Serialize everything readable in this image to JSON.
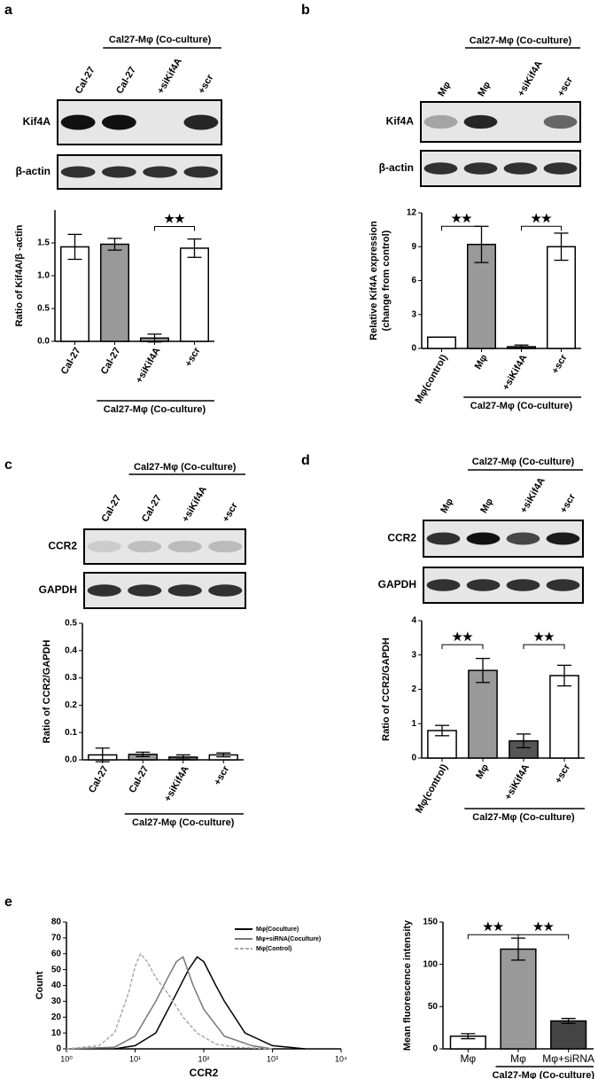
{
  "panel_labels": [
    "a",
    "b",
    "c",
    "d",
    "e"
  ],
  "blots": [
    {
      "group_label": "Cal27-Mφ (Co-culture)",
      "lanes": [
        "Cal-27",
        "Cal-27",
        "+siKif4A",
        "+scr"
      ],
      "rows": [
        "Kif4A",
        "β-actin"
      ]
    },
    {
      "group_label": "Cal27-Mφ (Co-culture)",
      "lanes": [
        "Mφ",
        "Mφ",
        "+siKif4A",
        "+scr"
      ],
      "rows": [
        "Kif4A",
        "β-actin"
      ]
    },
    {
      "group_label": "Cal27-Mφ (Co-culture)",
      "lanes": [
        "Cal-27",
        "Cal-27",
        "+siKif4A",
        "+scr"
      ],
      "rows": [
        "CCR2",
        "GAPDH"
      ]
    },
    {
      "group_label": "Cal27-Mφ (Co-culture)",
      "lanes": [
        "Mφ",
        "Mφ",
        "+siKif4A",
        "+scr"
      ],
      "rows": [
        "CCR2",
        "GAPDH"
      ]
    }
  ],
  "chart_data": [
    {
      "type": "bar",
      "categories": [
        "Cal-27",
        "Cal-27",
        "+siKif4A",
        "+scr"
      ],
      "values": [
        1.44,
        1.48,
        0.05,
        1.42
      ],
      "errors": [
        0.19,
        0.09,
        0.06,
        0.14
      ],
      "colors": [
        "#ffffff",
        "#999999",
        "#999999",
        "#ffffff"
      ],
      "ylim": [
        0,
        2
      ],
      "yticks": [
        {
          "value": 0,
          "label": "0.0"
        },
        0.5,
        {
          "value": 1,
          "label": "1.0"
        },
        1.5
      ],
      "ylabel": [
        "Ratio of Kif4A/β -actin"
      ],
      "group_label": "Cal27-Mφ (Co-culture)",
      "annotations": [
        "★★"
      ]
    },
    {
      "type": "bar",
      "categories": [
        "Mφ(control)",
        "Mφ",
        "+siKif4A",
        "+scr"
      ],
      "values": [
        1.0,
        9.2,
        0.15,
        9.0
      ],
      "errors": [
        0,
        1.6,
        0.15,
        1.2
      ],
      "colors": [
        "#ffffff",
        "#999999",
        "#666666",
        "#ffffff"
      ],
      "ylim": [
        0,
        12
      ],
      "yticks": [
        0,
        3,
        6,
        9,
        12
      ],
      "ylabel": [
        "Relative Kif4A expression",
        "(change from control)"
      ],
      "group_label": "Cal27-Mφ (Co-culture)",
      "annotations": [
        "★★",
        "★★"
      ]
    },
    {
      "type": "bar",
      "categories": [
        "Cal-27",
        "Cal-27",
        "+siKif4A",
        "+scr"
      ],
      "values": [
        0.018,
        0.02,
        0.01,
        0.018
      ],
      "errors": [
        0.025,
        0.008,
        0.008,
        0.007
      ],
      "colors": [
        "#ffffff",
        "#999999",
        "#666666",
        "#ffffff"
      ],
      "ylim": [
        0,
        0.5
      ],
      "yticks": [
        {
          "value": 0,
          "label": "0.0"
        },
        0.1,
        0.2,
        0.3,
        0.4,
        0.5
      ],
      "ylabel": [
        "Ratio of CCR2/GAPDH"
      ],
      "group_label": "Cal27-Mφ (Co-culture)",
      "annotations": []
    },
    {
      "type": "bar",
      "categories": [
        "Mφ(control)",
        "Mφ",
        "+siKif4A",
        "+scr"
      ],
      "values": [
        0.8,
        2.55,
        0.5,
        2.4
      ],
      "errors": [
        0.15,
        0.35,
        0.2,
        0.3
      ],
      "colors": [
        "#ffffff",
        "#999999",
        "#555555",
        "#ffffff"
      ],
      "ylim": [
        0,
        4
      ],
      "yticks": [
        0,
        1,
        2,
        3,
        4
      ],
      "ylabel": [
        "Ratio of CCR2/GAPDH"
      ],
      "group_label": "Cal27-Mφ (Co-culture)",
      "annotations": [
        "★★",
        "★★"
      ]
    },
    {
      "type": "line",
      "xlabel": "CCR2",
      "ylabel": [
        "Count"
      ],
      "log_x": true,
      "xlim": [
        1,
        10000
      ],
      "xticks": [
        {
          "value": 1,
          "label": "10⁰"
        },
        {
          "value": 10,
          "label": "10¹"
        },
        {
          "value": 100,
          "label": "10²"
        },
        {
          "value": 1000,
          "label": "10³"
        },
        {
          "value": 10000,
          "label": "10⁴"
        }
      ],
      "ylim": [
        0,
        80
      ],
      "yticks": [
        0,
        10,
        20,
        30,
        40,
        50,
        60,
        70,
        80
      ],
      "legend": "upper right",
      "series": [
        {
          "name": "Mφ(Coculture)",
          "color": "#000000",
          "x": [
            5,
            10,
            20,
            40,
            60,
            80,
            100,
            150,
            200,
            400,
            1000,
            3000
          ],
          "values": [
            0,
            2,
            10,
            35,
            50,
            58,
            55,
            40,
            30,
            10,
            2,
            0
          ]
        },
        {
          "name": "Mφ+siRNA(Coculture)",
          "color": "#777777",
          "x": [
            1,
            5,
            10,
            20,
            30,
            40,
            50,
            70,
            100,
            200,
            500,
            1000
          ],
          "values": [
            0,
            1,
            8,
            30,
            45,
            55,
            58,
            40,
            25,
            8,
            2,
            0
          ]
        },
        {
          "name": "Mφ(Control)",
          "color": "#aaaaaa",
          "dashed": true,
          "x": [
            1,
            3,
            5,
            8,
            10,
            12,
            15,
            20,
            30,
            50,
            80,
            150,
            300,
            1000
          ],
          "values": [
            0,
            2,
            10,
            35,
            52,
            60,
            55,
            45,
            35,
            20,
            10,
            3,
            1,
            0
          ]
        }
      ]
    },
    {
      "type": "bar",
      "categories": [
        "Mφ",
        "Mφ",
        "Mφ+siRNA"
      ],
      "values": [
        15,
        118,
        33
      ],
      "errors": [
        3,
        13,
        3
      ],
      "colors": [
        "#ffffff",
        "#999999",
        "#444444"
      ],
      "ylim": [
        0,
        150
      ],
      "yticks": [
        0,
        50,
        100,
        150
      ],
      "ylabel": [
        "Mean fluorescence intensity"
      ],
      "group_label": "Cal27-Mφ (Co-culture)",
      "annotations": [
        "★★",
        "★★"
      ]
    }
  ]
}
